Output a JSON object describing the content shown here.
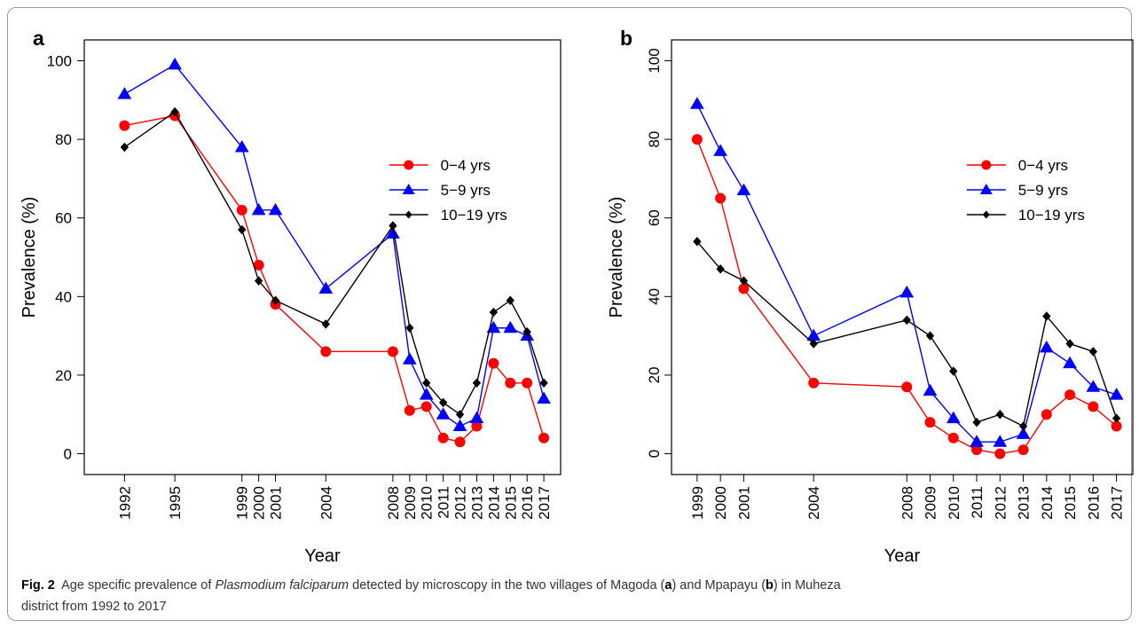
{
  "chart_data": [
    {
      "type": "line",
      "panel_label": "a",
      "xlabel": "Year",
      "ylabel": "Prevalence (%)",
      "x": [
        1992,
        1995,
        1999,
        2000,
        2001,
        2004,
        2008,
        2009,
        2010,
        2011,
        2012,
        2013,
        2014,
        2015,
        2016,
        2017
      ],
      "xlim": [
        1989.6,
        2018
      ],
      "xticks": [
        1992,
        1995,
        1999,
        2000,
        2001,
        2004,
        2008,
        2009,
        2010,
        2011,
        2012,
        2013,
        2014,
        2015,
        2016,
        2017
      ],
      "ylim": [
        -5.3,
        105.3
      ],
      "yticks": [
        0,
        20,
        40,
        60,
        80,
        100
      ],
      "ytick_rotation": 0,
      "legend": "right",
      "series": [
        {
          "name": "0−4 yrs",
          "color": "#ff0000",
          "marker": "circle",
          "values": [
            83.5,
            86,
            62,
            48,
            38,
            26,
            26,
            11,
            12,
            4,
            3,
            7,
            23,
            18,
            18,
            4
          ]
        },
        {
          "name": "5−9 yrs",
          "color": "#0000ff",
          "marker": "triangle",
          "values": [
            91.5,
            99,
            78,
            62,
            62,
            42,
            56,
            24,
            15,
            10,
            7,
            9,
            32,
            32,
            30,
            14
          ]
        },
        {
          "name": "10−19 yrs",
          "color": "#000000",
          "marker": "diamond",
          "values": [
            78,
            87,
            57,
            44,
            39,
            33,
            58,
            32,
            18,
            13,
            10,
            18,
            36,
            39,
            31,
            18
          ]
        }
      ]
    },
    {
      "type": "line",
      "panel_label": "b",
      "xlabel": "Year",
      "ylabel": "Prevalence (%)",
      "x": [
        1999,
        2000,
        2001,
        2004,
        2008,
        2009,
        2010,
        2011,
        2012,
        2013,
        2014,
        2015,
        2016,
        2017
      ],
      "xlim": [
        1997.9,
        2017.7
      ],
      "xticks": [
        1999,
        2000,
        2001,
        2004,
        2008,
        2009,
        2010,
        2011,
        2012,
        2013,
        2014,
        2015,
        2016,
        2017
      ],
      "ylim": [
        -5.3,
        105.3
      ],
      "yticks": [
        0,
        20,
        40,
        60,
        80,
        100
      ],
      "ytick_rotation": 90,
      "legend": "right",
      "series": [
        {
          "name": "0−4 yrs",
          "color": "#ff0000",
          "marker": "circle",
          "values": [
            80,
            65,
            42,
            18,
            17,
            8,
            4,
            1,
            0,
            1,
            10,
            15,
            12,
            7
          ]
        },
        {
          "name": "5−9 yrs",
          "color": "#0000ff",
          "marker": "triangle",
          "values": [
            89,
            77,
            67,
            30,
            41,
            16,
            9,
            3,
            3,
            5,
            27,
            23,
            17,
            15
          ]
        },
        {
          "name": "10−19 yrs",
          "color": "#000000",
          "marker": "diamond",
          "values": [
            54,
            47,
            44,
            28,
            34,
            30,
            21,
            8,
            10,
            7,
            35,
            28,
            26,
            9
          ]
        }
      ]
    }
  ],
  "caption": {
    "label": "Fig. 2",
    "parts": [
      "Age specific prevalence of ",
      "Plasmodium falciparum",
      " detected by microscopy in the two villages of Magoda (",
      "a",
      ") and Mpapayu (",
      "b",
      ") in Muheza",
      "district from 1992 to 2017"
    ]
  }
}
